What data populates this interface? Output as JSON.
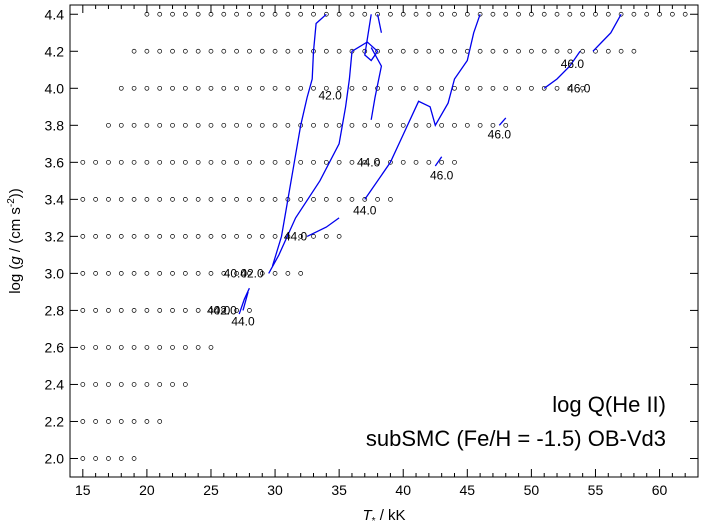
{
  "chart_data": {
    "type": "scatter",
    "title": "",
    "xlabel_parts": {
      "prefix": "T",
      "sub": "*",
      "suffix": " / kK"
    },
    "ylabel_parts": {
      "a": "log (",
      "g": "g",
      "b": " / (cm s",
      "sup": "-2",
      "c": "))"
    },
    "xlim": [
      14,
      63
    ],
    "ylim": [
      1.9,
      4.45
    ],
    "xticks": [
      15,
      20,
      25,
      30,
      35,
      40,
      45,
      50,
      55,
      60
    ],
    "yticks": [
      2.0,
      2.2,
      2.4,
      2.6,
      2.8,
      3.0,
      3.2,
      3.4,
      3.6,
      3.8,
      4.0,
      4.2,
      4.4
    ],
    "ytick_labels": [
      "2.0",
      "2.2",
      "2.4",
      "2.6",
      "2.8",
      "3.0",
      "3.2",
      "3.4",
      "3.6",
      "3.8",
      "4.0",
      "4.2",
      "4.4"
    ],
    "grid": false,
    "annotations": [
      "log Q(He II)",
      "subSMC (Fe/H = -1.5) OB-Vd3"
    ],
    "grid_rows": [
      {
        "logg": 4.4,
        "tmin": 20,
        "tmax": 62
      },
      {
        "logg": 4.2,
        "tmin": 19,
        "tmax": 58
      },
      {
        "logg": 4.0,
        "tmin": 18,
        "tmax": 54
      },
      {
        "logg": 3.8,
        "tmin": 17,
        "tmax": 48
      },
      {
        "logg": 3.6,
        "tmin": 15,
        "tmax": 44
      },
      {
        "logg": 3.4,
        "tmin": 15,
        "tmax": 39
      },
      {
        "logg": 3.2,
        "tmin": 15,
        "tmax": 35
      },
      {
        "logg": 3.0,
        "tmin": 15,
        "tmax": 32
      },
      {
        "logg": 2.8,
        "tmin": 15,
        "tmax": 28
      },
      {
        "logg": 2.6,
        "tmin": 15,
        "tmax": 25
      },
      {
        "logg": 2.4,
        "tmin": 15,
        "tmax": 23
      },
      {
        "logg": 2.2,
        "tmin": 15,
        "tmax": 21
      },
      {
        "logg": 2.0,
        "tmin": 15,
        "tmax": 19
      }
    ],
    "contours": [
      {
        "points": [
          [
            27.2,
            2.78
          ],
          [
            27.6,
            2.86
          ],
          [
            28.0,
            2.92
          ]
        ]
      },
      {
        "points": [
          [
            27.5,
            2.8
          ],
          [
            27.9,
            2.9
          ]
        ]
      },
      {
        "points": [
          [
            29.8,
            3.04
          ],
          [
            30.5,
            3.2
          ],
          [
            31.0,
            3.4
          ],
          [
            31.5,
            3.6
          ],
          [
            32.0,
            3.8
          ],
          [
            32.5,
            3.95
          ],
          [
            32.9,
            4.05
          ],
          [
            33.0,
            4.2
          ],
          [
            33.2,
            4.35
          ],
          [
            34.0,
            4.4
          ]
        ]
      },
      {
        "points": [
          [
            29.5,
            3.0
          ],
          [
            30.3,
            3.1
          ],
          [
            31.6,
            3.3
          ],
          [
            33.5,
            3.5
          ],
          [
            35.0,
            3.7
          ],
          [
            35.5,
            3.9
          ],
          [
            35.8,
            4.05
          ],
          [
            36.0,
            4.2
          ],
          [
            37.2,
            4.25
          ],
          [
            38.0,
            4.2
          ],
          [
            37.5,
            4.15
          ],
          [
            37.0,
            4.18
          ],
          [
            37.5,
            4.4
          ]
        ]
      },
      {
        "points": [
          [
            38.0,
            4.4
          ],
          [
            38.3,
            4.3
          ]
        ]
      },
      {
        "points": [
          [
            37.5,
            4.22
          ],
          [
            38.3,
            4.12
          ],
          [
            37.8,
            3.95
          ],
          [
            37.5,
            3.83
          ]
        ]
      },
      {
        "points": [
          [
            32.5,
            3.2
          ],
          [
            34.0,
            3.25
          ],
          [
            35.0,
            3.3
          ]
        ]
      },
      {
        "points": [
          [
            37.0,
            3.4
          ],
          [
            39.0,
            3.6
          ],
          [
            40.0,
            3.75
          ],
          [
            41.2,
            3.93
          ],
          [
            42.1,
            3.9
          ],
          [
            42.5,
            3.8
          ],
          [
            43.5,
            3.92
          ],
          [
            44.0,
            4.05
          ],
          [
            45.0,
            4.15
          ],
          [
            45.5,
            4.3
          ],
          [
            46.0,
            4.4
          ]
        ]
      },
      {
        "points": [
          [
            42.5,
            3.58
          ],
          [
            43.0,
            3.63
          ]
        ]
      },
      {
        "points": [
          [
            47.5,
            3.8
          ],
          [
            48.0,
            3.84
          ]
        ]
      },
      {
        "points": [
          [
            51.0,
            4.0
          ],
          [
            52.0,
            4.05
          ],
          [
            53.0,
            4.12
          ],
          [
            53.8,
            4.2
          ]
        ]
      },
      {
        "points": [
          [
            54.8,
            4.2
          ],
          [
            55.5,
            4.25
          ],
          [
            56.2,
            4.3
          ],
          [
            57.0,
            4.4
          ]
        ]
      }
    ],
    "contour_labels": [
      {
        "x": 25.6,
        "y": 2.8,
        "text": "40.0"
      },
      {
        "x": 26.1,
        "y": 2.8,
        "text": "42.0"
      },
      {
        "x": 27.5,
        "y": 2.74,
        "text": "44.0"
      },
      {
        "x": 26.9,
        "y": 3.0,
        "text": "40.0"
      },
      {
        "x": 28.2,
        "y": 3.0,
        "text": "42.0"
      },
      {
        "x": 31.6,
        "y": 3.2,
        "text": "44.0"
      },
      {
        "x": 34.3,
        "y": 3.96,
        "text": "42.0"
      },
      {
        "x": 37.3,
        "y": 3.6,
        "text": "44.0"
      },
      {
        "x": 37.0,
        "y": 3.34,
        "text": "44.0"
      },
      {
        "x": 43.0,
        "y": 3.53,
        "text": "46.0"
      },
      {
        "x": 47.5,
        "y": 3.75,
        "text": "46.0"
      },
      {
        "x": 53.7,
        "y": 4.0,
        "text": "46.0"
      },
      {
        "x": 53.2,
        "y": 4.13,
        "text": "46.0"
      }
    ],
    "colors": {
      "contour": "#0000ee",
      "markers": "#000000",
      "frame": "#000000"
    }
  }
}
